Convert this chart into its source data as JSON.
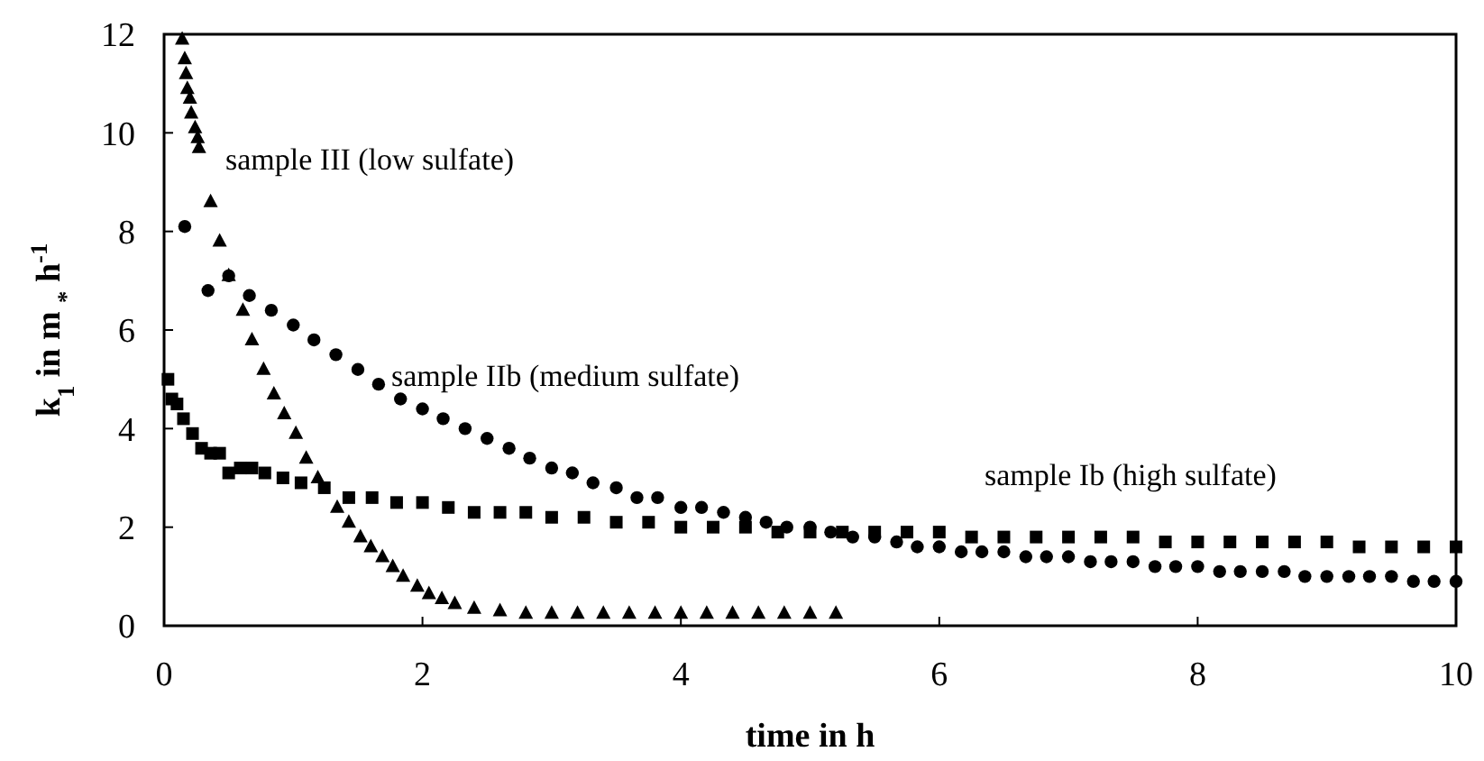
{
  "chart_data": {
    "type": "scatter",
    "xlabel": "time in h",
    "ylabel": "k$_{1}$ in m $_{*}$ h$^{-1}$",
    "xlim": [
      0,
      10
    ],
    "ylim": [
      0,
      12
    ],
    "xticks": [
      0,
      2,
      4,
      6,
      8,
      10
    ],
    "yticks": [
      0,
      2,
      4,
      6,
      8,
      10,
      12
    ],
    "grid": false,
    "series": [
      {
        "name": "sample III (low sulfate)",
        "color": "#000000",
        "marker": "triangle",
        "x": [
          0.14,
          0.16,
          0.17,
          0.18,
          0.2,
          0.21,
          0.24,
          0.26,
          0.27,
          0.36,
          0.43,
          0.5,
          0.61,
          0.68,
          0.77,
          0.85,
          0.93,
          1.02,
          1.1,
          1.19,
          1.34,
          1.43,
          1.52,
          1.6,
          1.69,
          1.77,
          1.85,
          1.96,
          2.05,
          2.15,
          2.25,
          2.4,
          2.6,
          2.8,
          3.0,
          3.2,
          3.4,
          3.6,
          3.8,
          4.0,
          4.2,
          4.4,
          4.6,
          4.8,
          5.0,
          5.2
        ],
        "values": [
          11.9,
          11.5,
          11.2,
          10.9,
          10.7,
          10.4,
          10.1,
          9.9,
          9.7,
          8.6,
          7.8,
          7.1,
          6.4,
          5.8,
          5.2,
          4.7,
          4.3,
          3.9,
          3.4,
          3.0,
          2.4,
          2.1,
          1.8,
          1.6,
          1.4,
          1.2,
          1.0,
          0.8,
          0.65,
          0.55,
          0.45,
          0.35,
          0.3,
          0.25,
          0.25,
          0.25,
          0.25,
          0.25,
          0.25,
          0.25,
          0.25,
          0.25,
          0.25,
          0.25,
          0.25,
          0.25
        ]
      },
      {
        "name": "sample IIb (medium sulfate)",
        "color": "#000000",
        "marker": "circle",
        "x": [
          0.16,
          0.34,
          0.5,
          0.66,
          0.83,
          1.0,
          1.16,
          1.33,
          1.5,
          1.66,
          1.83,
          2.0,
          2.16,
          2.33,
          2.5,
          2.67,
          2.83,
          3.0,
          3.16,
          3.32,
          3.5,
          3.66,
          3.82,
          4.0,
          4.16,
          4.33,
          4.5,
          4.66,
          4.82,
          5.0,
          5.16,
          5.33,
          5.5,
          5.67,
          5.83,
          6.0,
          6.17,
          6.33,
          6.5,
          6.67,
          6.83,
          7.0,
          7.17,
          7.33,
          7.5,
          7.67,
          7.83,
          8.0,
          8.17,
          8.33,
          8.5,
          8.67,
          8.83,
          9.0,
          9.17,
          9.33,
          9.5,
          9.67,
          9.83,
          10.0
        ],
        "values": [
          8.1,
          6.8,
          7.1,
          6.7,
          6.4,
          6.1,
          5.8,
          5.5,
          5.2,
          4.9,
          4.6,
          4.4,
          4.2,
          4.0,
          3.8,
          3.6,
          3.4,
          3.2,
          3.1,
          2.9,
          2.8,
          2.6,
          2.6,
          2.4,
          2.4,
          2.3,
          2.2,
          2.1,
          2.0,
          2.0,
          1.9,
          1.8,
          1.8,
          1.7,
          1.6,
          1.6,
          1.5,
          1.5,
          1.5,
          1.4,
          1.4,
          1.4,
          1.3,
          1.3,
          1.3,
          1.2,
          1.2,
          1.2,
          1.1,
          1.1,
          1.1,
          1.1,
          1.0,
          1.0,
          1.0,
          1.0,
          1.0,
          0.9,
          0.9,
          0.9
        ]
      },
      {
        "name": "sample Ib (high sulfate)",
        "color": "#000000",
        "marker": "square",
        "x": [
          0.03,
          0.06,
          0.1,
          0.15,
          0.22,
          0.29,
          0.36,
          0.43,
          0.5,
          0.59,
          0.68,
          0.78,
          0.92,
          1.06,
          1.24,
          1.43,
          1.61,
          1.8,
          2.0,
          2.2,
          2.4,
          2.6,
          2.8,
          3.0,
          3.25,
          3.5,
          3.75,
          4.0,
          4.25,
          4.5,
          4.75,
          5.0,
          5.25,
          5.5,
          5.75,
          6.0,
          6.25,
          6.5,
          6.75,
          7.0,
          7.25,
          7.5,
          7.75,
          8.0,
          8.25,
          8.5,
          8.75,
          9.0,
          9.25,
          9.5,
          9.75,
          10.0
        ],
        "values": [
          5.0,
          4.6,
          4.5,
          4.2,
          3.9,
          3.6,
          3.5,
          3.5,
          3.1,
          3.2,
          3.2,
          3.1,
          3.0,
          2.9,
          2.8,
          2.6,
          2.6,
          2.5,
          2.5,
          2.4,
          2.3,
          2.3,
          2.3,
          2.2,
          2.2,
          2.1,
          2.1,
          2.0,
          2.0,
          2.0,
          1.9,
          1.9,
          1.9,
          1.9,
          1.9,
          1.9,
          1.8,
          1.8,
          1.8,
          1.8,
          1.8,
          1.8,
          1.7,
          1.7,
          1.7,
          1.7,
          1.7,
          1.7,
          1.6,
          1.6,
          1.6,
          1.6
        ]
      }
    ]
  }
}
